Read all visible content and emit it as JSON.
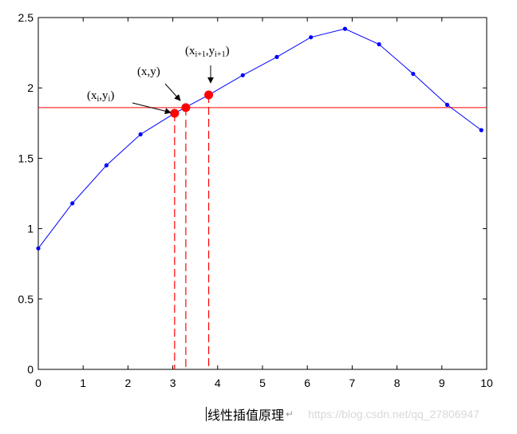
{
  "chart_data": {
    "type": "line",
    "xlim": [
      0,
      10
    ],
    "ylim": [
      0,
      2.5
    ],
    "xticks": [
      "0",
      "1",
      "2",
      "3",
      "4",
      "5",
      "6",
      "7",
      "8",
      "9",
      "10"
    ],
    "yticks": [
      "0",
      "0.5",
      "1",
      "1.5",
      "2",
      "2.5"
    ],
    "grid": false,
    "series": [
      {
        "color": "#0000ff",
        "marker": "dot",
        "x": [
          0,
          0.76,
          1.52,
          2.28,
          3.04,
          3.8,
          4.56,
          5.32,
          6.08,
          6.84,
          7.6,
          8.36,
          9.12,
          9.88
        ],
        "y": [
          0.86,
          1.18,
          1.45,
          1.67,
          1.82,
          1.95,
          2.09,
          2.22,
          2.36,
          2.42,
          2.31,
          2.1,
          1.88,
          1.7
        ]
      }
    ],
    "interpolation": {
      "color": "#ff0000",
      "horizontal_line_y": 1.86,
      "points": [
        {
          "id": "p-i",
          "x": 3.04,
          "y": 1.82
        },
        {
          "id": "p",
          "x": 3.29,
          "y": 1.86
        },
        {
          "id": "p-i1",
          "x": 3.8,
          "y": 1.95
        }
      ],
      "dashed_x": [
        3.04,
        3.29,
        3.8
      ]
    },
    "annotations": {
      "p_i": {
        "open": "(x",
        "sub1": "i",
        "mid": ",y",
        "sub2": "i",
        "close": ")"
      },
      "p": {
        "text": "(x,y)"
      },
      "p_i1": {
        "open": "(x",
        "sub1": "i+1",
        "mid": ",y",
        "sub2": "i+1",
        "close": ")"
      }
    }
  },
  "caption": {
    "text": "线性插值原理",
    "mark": "↵",
    "watermark": "https://blog.csdn.net/qq_27806947"
  }
}
